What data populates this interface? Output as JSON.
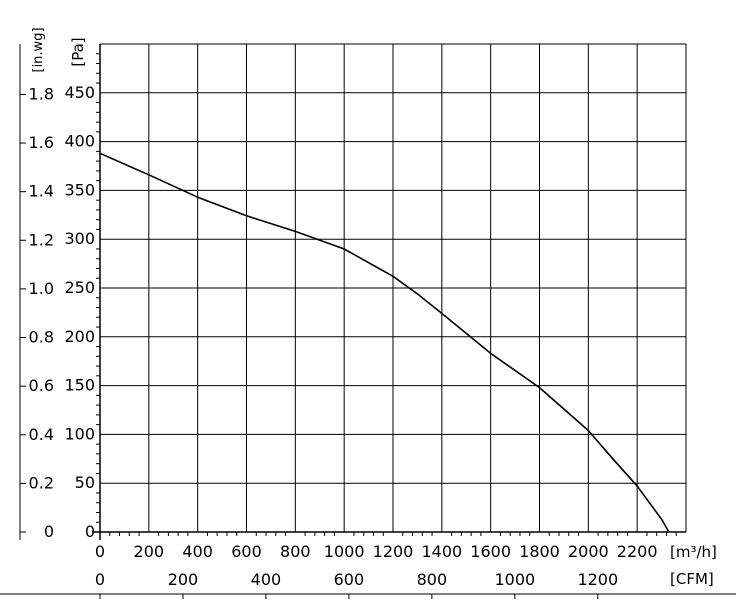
{
  "chart_data": {
    "type": "line",
    "x_units_label": "[m³/h]",
    "x2_units_label": "[CFM]",
    "y_units_label": "[Pa]",
    "y2_units_label": "[in.wg]",
    "xlim": [
      0,
      2400
    ],
    "ylim": [
      0,
      500
    ],
    "x_ticks": [
      0,
      200,
      400,
      600,
      800,
      1000,
      1200,
      1400,
      1600,
      1800,
      2000,
      2200
    ],
    "x_tick_labels": [
      "0",
      "200",
      "400",
      "600",
      "800",
      "1000",
      "1200",
      "1400",
      "1600",
      "1800",
      "2000",
      "2200"
    ],
    "x2_ticks_m3h": [
      0,
      339.8,
      679.6,
      1019.4,
      1359.2,
      1699,
      2038.8
    ],
    "x2_tick_labels": [
      "0",
      "200",
      "400",
      "600",
      "800",
      "1000",
      "1200"
    ],
    "y_ticks": [
      0,
      50,
      100,
      150,
      200,
      250,
      300,
      350,
      400,
      450
    ],
    "y_tick_labels": [
      "0",
      "50",
      "100",
      "150",
      "200",
      "250",
      "300",
      "350",
      "400",
      "450"
    ],
    "y2_ticks_pa": [
      0,
      49.8,
      99.6,
      149.4,
      199.3,
      249.1,
      298.9,
      348.7,
      398.5,
      448.3
    ],
    "y2_tick_labels": [
      "0",
      "0.2",
      "0.4",
      "0.6",
      "0.8",
      "1.0",
      "1.2",
      "1.4",
      "1.6",
      "1.8"
    ],
    "grid": true,
    "series": [
      {
        "color": "#000000",
        "x": [
          0,
          200,
          400,
          600,
          800,
          1000,
          1200,
          1300,
          1400,
          1600,
          1800,
          2000,
          2100,
          2200,
          2300,
          2330
        ],
        "values": [
          388,
          366,
          343,
          324,
          308,
          290,
          262,
          244,
          224,
          183,
          148,
          104,
          75,
          47,
          13,
          0
        ]
      }
    ]
  }
}
